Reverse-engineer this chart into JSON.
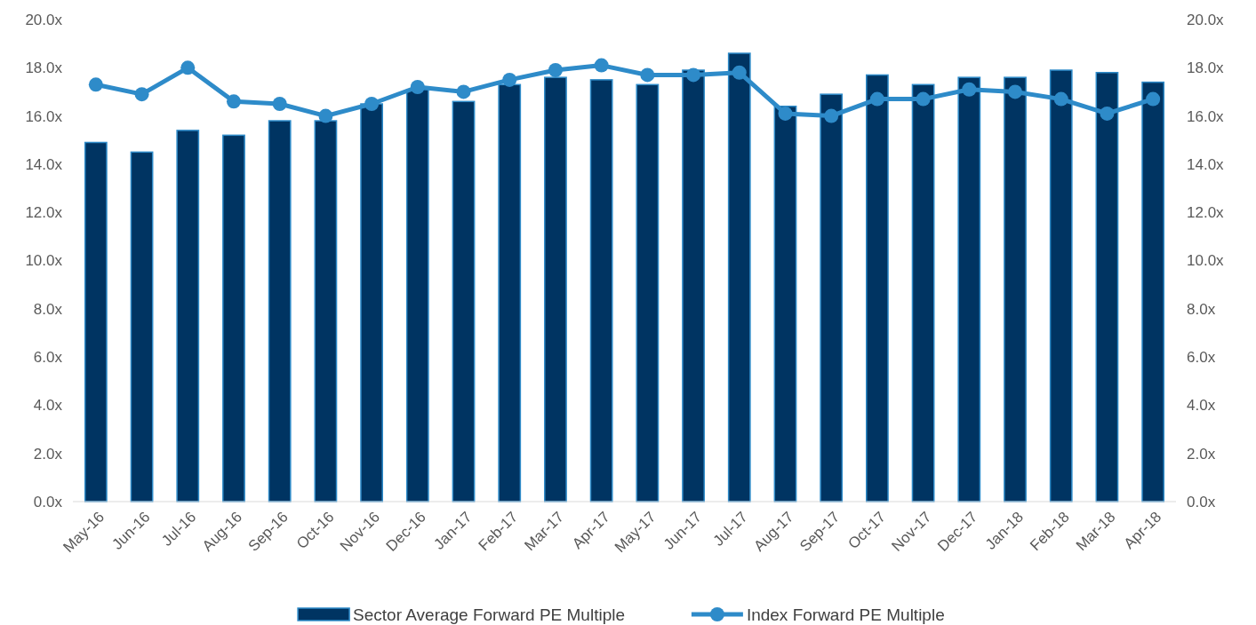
{
  "chart_data": {
    "type": "bar",
    "categories": [
      "May-16",
      "Jun-16",
      "Jul-16",
      "Aug-16",
      "Sep-16",
      "Oct-16",
      "Nov-16",
      "Dec-16",
      "Jan-17",
      "Feb-17",
      "Mar-17",
      "Apr-17",
      "May-17",
      "Jun-17",
      "Jul-17",
      "Aug-17",
      "Sep-17",
      "Oct-17",
      "Nov-17",
      "Dec-17",
      "Jan-18",
      "Feb-18",
      "Mar-18",
      "Apr-18"
    ],
    "series": [
      {
        "name": "Sector Average Forward PE Multiple",
        "color": "#003462",
        "values": [
          14.9,
          14.5,
          15.4,
          15.2,
          15.8,
          15.8,
          16.5,
          17.1,
          16.6,
          17.3,
          17.6,
          17.5,
          17.3,
          17.9,
          18.6,
          16.4,
          16.9,
          17.7,
          17.3,
          17.6,
          17.6,
          17.9,
          17.8,
          17.4
        ]
      },
      {
        "name": "Index Forward PE Multiple",
        "type": "line",
        "axis": "y2",
        "color": "#2e8bc9",
        "values": [
          17.3,
          16.9,
          18.0,
          16.6,
          16.5,
          16.0,
          16.5,
          17.2,
          17.0,
          17.5,
          17.9,
          18.1,
          17.7,
          17.7,
          17.8,
          16.1,
          16.0,
          16.7,
          16.7,
          17.1,
          17.0,
          16.7,
          16.1,
          16.7
        ]
      }
    ],
    "ylim": [
      0,
      20
    ],
    "yticks": [
      {
        "value": 0,
        "label": "0.0x"
      },
      {
        "value": 2,
        "label": "2.0x"
      },
      {
        "value": 4,
        "label": "4.0x"
      },
      {
        "value": 6,
        "label": "6.0x"
      },
      {
        "value": 8,
        "label": "8.0x"
      },
      {
        "value": 10,
        "label": "10.0x"
      },
      {
        "value": 12,
        "label": "12.0x"
      },
      {
        "value": 14,
        "label": "14.0x"
      },
      {
        "value": 16,
        "label": "16.0x"
      },
      {
        "value": 18,
        "label": "18.0x"
      },
      {
        "value": 20,
        "label": "20.0x"
      }
    ],
    "y2lim": [
      0,
      20
    ],
    "y2ticks": [
      {
        "value": 0,
        "label": "0.0x"
      },
      {
        "value": 2,
        "label": "2.0x"
      },
      {
        "value": 4,
        "label": "4.0x"
      },
      {
        "value": 6,
        "label": "6.0x"
      },
      {
        "value": 8,
        "label": "8.0x"
      },
      {
        "value": 10,
        "label": "10.0x"
      },
      {
        "value": 12,
        "label": "12.0x"
      },
      {
        "value": 14,
        "label": "14.0x"
      },
      {
        "value": 16,
        "label": "16.0x"
      },
      {
        "value": 18,
        "label": "18.0x"
      },
      {
        "value": 20,
        "label": "20.0x"
      }
    ],
    "legend": "bottom",
    "marker": "circle",
    "line_style": "solid"
  }
}
